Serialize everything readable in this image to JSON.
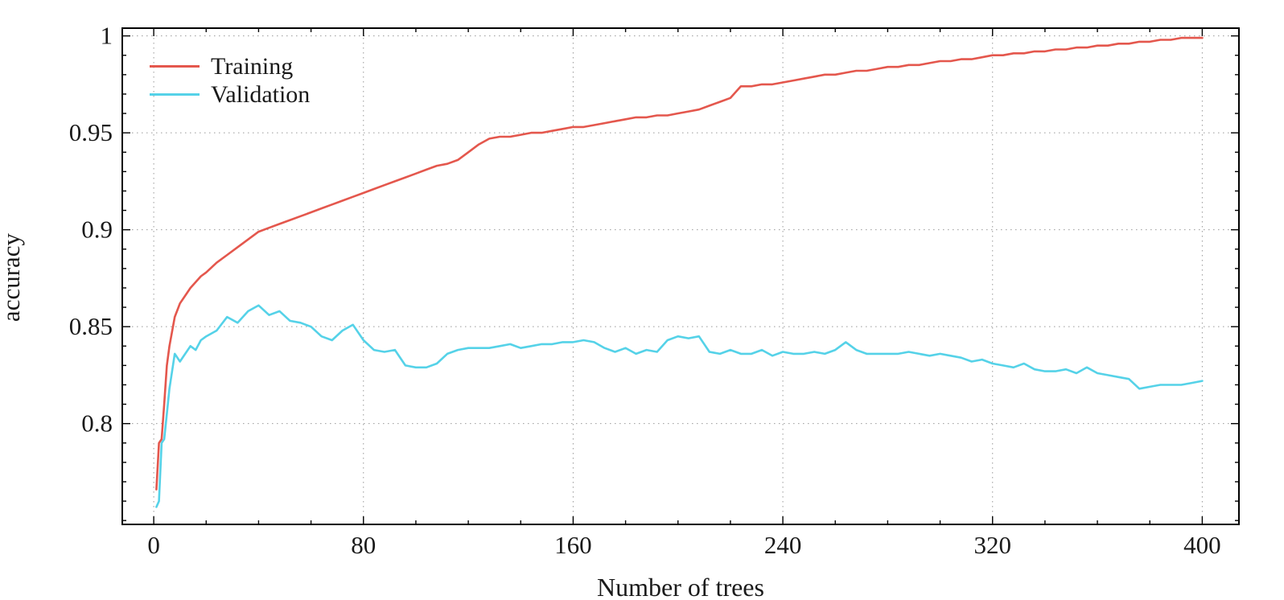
{
  "chart_data": {
    "type": "line",
    "title": "",
    "xlabel": "Number of trees",
    "ylabel": "accuracy",
    "grid": true,
    "legend_position": "top-left",
    "xlim": [
      -12,
      414
    ],
    "ylim": [
      0.748,
      1.004
    ],
    "xticks": {
      "values": [
        0,
        80,
        160,
        240,
        320,
        400
      ],
      "labels": [
        "0",
        "80",
        "160",
        "240",
        "320",
        "400"
      ]
    },
    "yticks": {
      "values": [
        0.8,
        0.85,
        0.9,
        0.95,
        1
      ],
      "labels": [
        "0.8",
        "0.85",
        "0.9",
        "0.95",
        "1"
      ]
    },
    "minor_xtick_step": 20,
    "minor_ytick_step": 0.01,
    "grid_color": "#999999",
    "axis_color": "#000000",
    "x": [
      1,
      2,
      3,
      4,
      5,
      6,
      8,
      10,
      12,
      14,
      16,
      18,
      20,
      24,
      28,
      32,
      36,
      40,
      44,
      48,
      52,
      56,
      60,
      64,
      68,
      72,
      76,
      80,
      84,
      88,
      92,
      96,
      100,
      104,
      108,
      112,
      116,
      120,
      124,
      128,
      132,
      136,
      140,
      144,
      148,
      152,
      156,
      160,
      164,
      168,
      172,
      176,
      180,
      184,
      188,
      192,
      196,
      200,
      204,
      208,
      212,
      216,
      220,
      224,
      228,
      232,
      236,
      240,
      244,
      248,
      252,
      256,
      260,
      264,
      268,
      272,
      276,
      280,
      284,
      288,
      292,
      296,
      300,
      304,
      308,
      312,
      316,
      320,
      324,
      328,
      332,
      336,
      340,
      344,
      348,
      352,
      356,
      360,
      364,
      368,
      372,
      376,
      380,
      384,
      388,
      392,
      396,
      400
    ],
    "series": [
      {
        "name": "Training",
        "color": "#e4574d",
        "values": [
          0.766,
          0.79,
          0.792,
          0.81,
          0.83,
          0.84,
          0.855,
          0.862,
          0.866,
          0.87,
          0.873,
          0.876,
          0.878,
          0.883,
          0.887,
          0.891,
          0.895,
          0.899,
          0.901,
          0.903,
          0.905,
          0.907,
          0.909,
          0.911,
          0.913,
          0.915,
          0.917,
          0.919,
          0.921,
          0.923,
          0.925,
          0.927,
          0.929,
          0.931,
          0.933,
          0.934,
          0.936,
          0.94,
          0.944,
          0.947,
          0.948,
          0.948,
          0.949,
          0.95,
          0.95,
          0.951,
          0.952,
          0.953,
          0.953,
          0.954,
          0.955,
          0.956,
          0.957,
          0.958,
          0.958,
          0.959,
          0.959,
          0.96,
          0.961,
          0.962,
          0.964,
          0.966,
          0.968,
          0.974,
          0.974,
          0.975,
          0.975,
          0.976,
          0.977,
          0.978,
          0.979,
          0.98,
          0.98,
          0.981,
          0.982,
          0.982,
          0.983,
          0.984,
          0.984,
          0.985,
          0.985,
          0.986,
          0.987,
          0.987,
          0.988,
          0.988,
          0.989,
          0.99,
          0.99,
          0.991,
          0.991,
          0.992,
          0.992,
          0.993,
          0.993,
          0.994,
          0.994,
          0.995,
          0.995,
          0.996,
          0.996,
          0.997,
          0.997,
          0.998,
          0.998,
          0.999,
          0.999,
          0.999
        ]
      },
      {
        "name": "Validation",
        "color": "#55d2e8",
        "values": [
          0.757,
          0.76,
          0.79,
          0.792,
          0.805,
          0.818,
          0.836,
          0.832,
          0.836,
          0.84,
          0.838,
          0.843,
          0.845,
          0.848,
          0.855,
          0.852,
          0.858,
          0.861,
          0.856,
          0.858,
          0.853,
          0.852,
          0.85,
          0.845,
          0.843,
          0.848,
          0.851,
          0.843,
          0.838,
          0.837,
          0.838,
          0.83,
          0.829,
          0.829,
          0.831,
          0.836,
          0.838,
          0.839,
          0.839,
          0.839,
          0.84,
          0.841,
          0.839,
          0.84,
          0.841,
          0.841,
          0.842,
          0.842,
          0.843,
          0.842,
          0.839,
          0.837,
          0.839,
          0.836,
          0.838,
          0.837,
          0.843,
          0.845,
          0.844,
          0.845,
          0.837,
          0.836,
          0.838,
          0.836,
          0.836,
          0.838,
          0.835,
          0.837,
          0.836,
          0.836,
          0.837,
          0.836,
          0.838,
          0.842,
          0.838,
          0.836,
          0.836,
          0.836,
          0.836,
          0.837,
          0.836,
          0.835,
          0.836,
          0.835,
          0.834,
          0.832,
          0.833,
          0.831,
          0.83,
          0.829,
          0.831,
          0.828,
          0.827,
          0.827,
          0.828,
          0.826,
          0.829,
          0.826,
          0.825,
          0.824,
          0.823,
          0.818,
          0.819,
          0.82,
          0.82,
          0.82,
          0.821,
          0.822
        ]
      }
    ]
  }
}
